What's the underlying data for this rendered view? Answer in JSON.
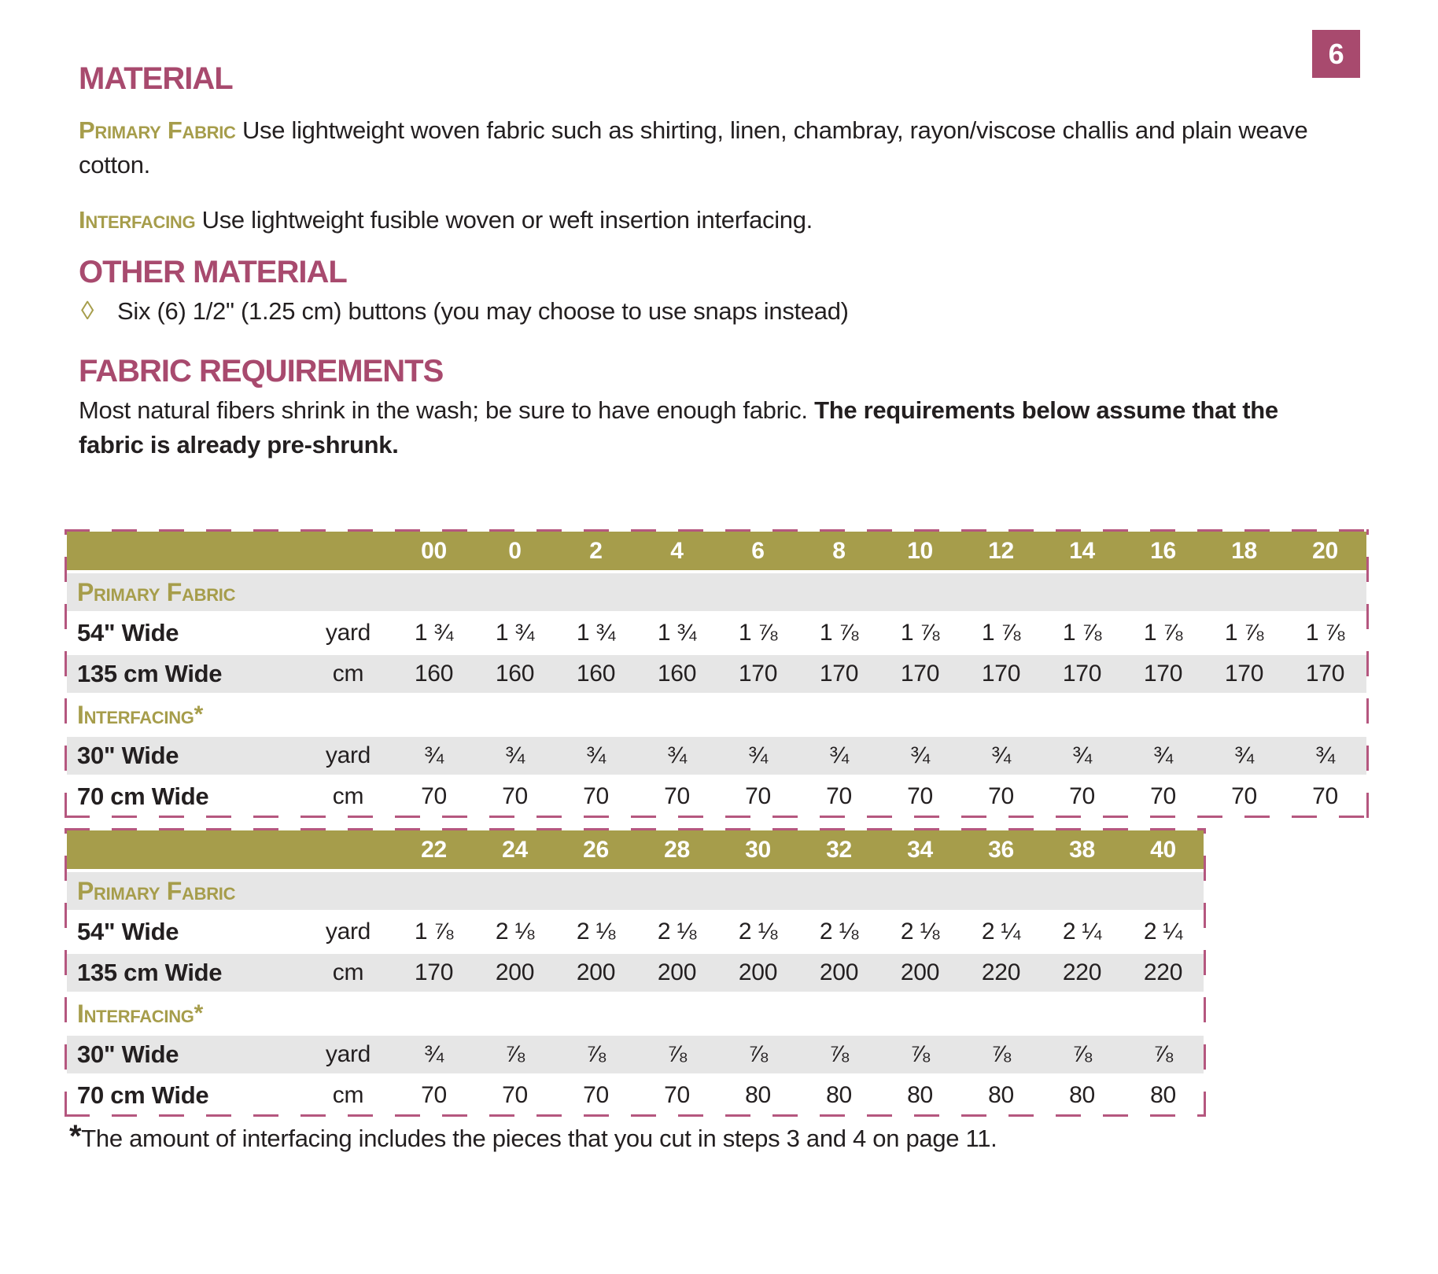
{
  "page": {
    "number": "6",
    "colors": {
      "maroon": "#a84a6e",
      "olive": "#a69d4b",
      "stripe_gray": "#e6e6e6",
      "dashed_border": "#b5577f"
    }
  },
  "material": {
    "title": "MATERIAL",
    "primary_fabric_label": "Primary Fabric",
    "primary_fabric_text": " Use lightweight woven fabric such as shirting, linen, chambray, rayon/viscose challis and plain weave cotton.",
    "interfacing_label": "Interfacing",
    "interfacing_text": " Use lightweight fusible woven or weft insertion interfacing."
  },
  "other_material": {
    "title": "OTHER MATERIAL",
    "bullet_glyph": "◊",
    "item": "Six (6) 1/2\" (1.25 cm) buttons (you may choose to use snaps instead)"
  },
  "fabric_requirements": {
    "title": "FABRIC REQUIREMENTS",
    "intro_normal": "Most natural fibers shrink in the wash; be sure to have enough fabric. ",
    "intro_bold": "The requirements below assume that the fabric is already pre-shrunk."
  },
  "tables": [
    {
      "sizes": [
        "00",
        "0",
        "2",
        "4",
        "6",
        "8",
        "10",
        "12",
        "14",
        "16",
        "18",
        "20"
      ],
      "groups": [
        {
          "label": "Primary Fabric",
          "suffix": "",
          "rows": [
            {
              "label": "54\" Wide",
              "unit": "yard",
              "values": [
                "1 ¾",
                "1 ¾",
                "1 ¾",
                "1 ¾",
                "1 ⅞",
                "1 ⅞",
                "1 ⅞",
                "1 ⅞",
                "1 ⅞",
                "1 ⅞",
                "1 ⅞",
                "1 ⅞"
              ]
            },
            {
              "label": "135 cm Wide",
              "unit": "cm",
              "values": [
                "160",
                "160",
                "160",
                "160",
                "170",
                "170",
                "170",
                "170",
                "170",
                "170",
                "170",
                "170"
              ]
            }
          ]
        },
        {
          "label": "Interfacing",
          "suffix": "*",
          "rows": [
            {
              "label": "30\" Wide",
              "unit": "yard",
              "values": [
                "¾",
                "¾",
                "¾",
                "¾",
                "¾",
                "¾",
                "¾",
                "¾",
                "¾",
                "¾",
                "¾",
                "¾"
              ]
            },
            {
              "label": "70 cm Wide",
              "unit": "cm",
              "values": [
                "70",
                "70",
                "70",
                "70",
                "70",
                "70",
                "70",
                "70",
                "70",
                "70",
                "70",
                "70"
              ]
            }
          ]
        }
      ]
    },
    {
      "sizes": [
        "22",
        "24",
        "26",
        "28",
        "30",
        "32",
        "34",
        "36",
        "38",
        "40"
      ],
      "groups": [
        {
          "label": "Primary Fabric",
          "suffix": "",
          "rows": [
            {
              "label": "54\" Wide",
              "unit": "yard",
              "values": [
                "1 ⅞",
                "2 ⅛",
                "2 ⅛",
                "2 ⅛",
                "2 ⅛",
                "2 ⅛",
                "2 ⅛",
                "2 ¼",
                "2 ¼",
                "2 ¼"
              ]
            },
            {
              "label": "135 cm Wide",
              "unit": "cm",
              "values": [
                "170",
                "200",
                "200",
                "200",
                "200",
                "200",
                "200",
                "220",
                "220",
                "220"
              ]
            }
          ]
        },
        {
          "label": "Interfacing",
          "suffix": "*",
          "rows": [
            {
              "label": "30\" Wide",
              "unit": "yard",
              "values": [
                "¾",
                "⅞",
                "⅞",
                "⅞",
                "⅞",
                "⅞",
                "⅞",
                "⅞",
                "⅞",
                "⅞"
              ]
            },
            {
              "label": "70 cm Wide",
              "unit": "cm",
              "values": [
                "70",
                "70",
                "70",
                "70",
                "80",
                "80",
                "80",
                "80",
                "80",
                "80"
              ]
            }
          ]
        }
      ]
    }
  ],
  "footnote": {
    "marker": "*",
    "text": "The amount of interfacing includes the pieces that you cut in steps 3 and 4 on page 11."
  }
}
